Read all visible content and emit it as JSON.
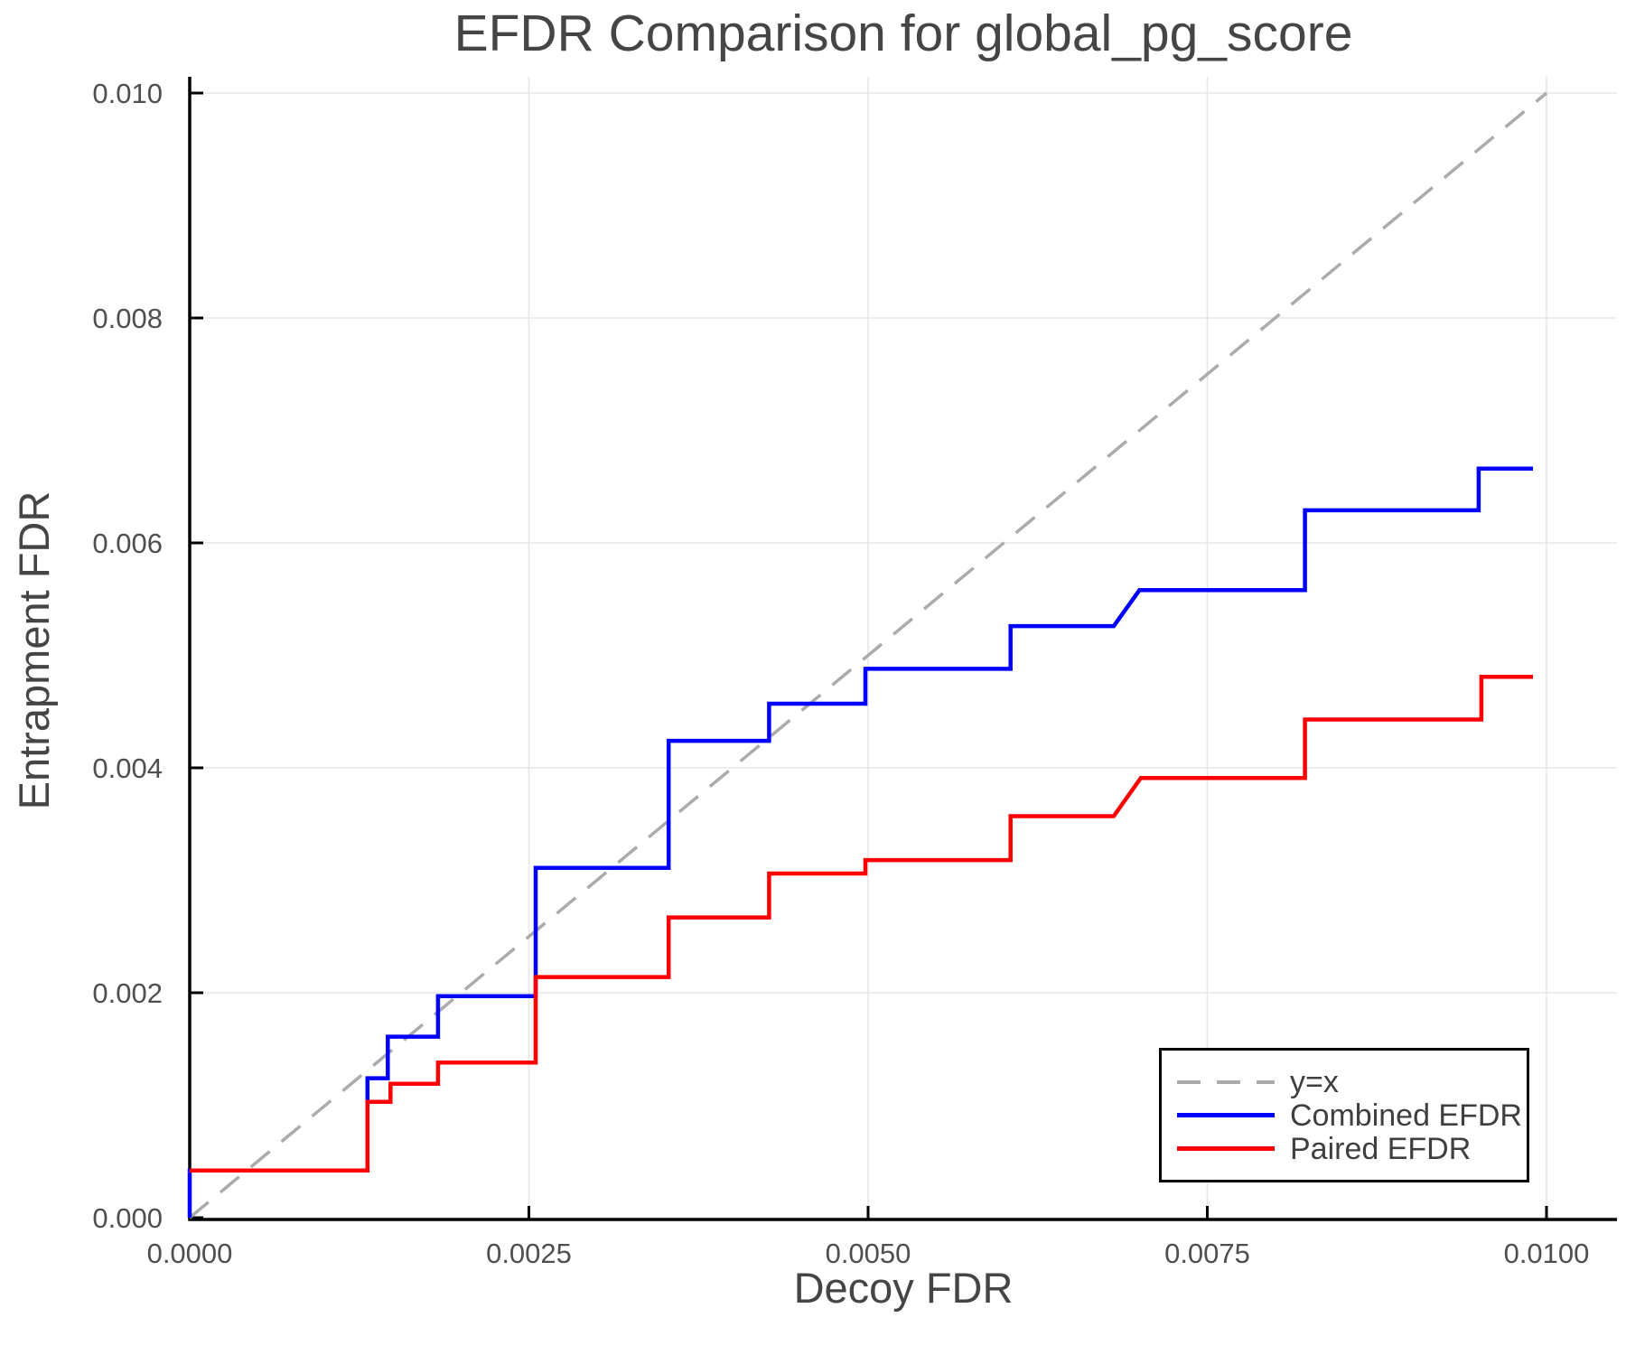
{
  "figure": {
    "title": "EFDR Comparison for global_pg_score",
    "x_axis_label": "Decoy FDR",
    "y_axis_label": "Entrapment FDR",
    "background_color": "#ffffff",
    "grid_color": "#e7e7e7",
    "spine_color": "#000000",
    "text_color": "#454545",
    "tick_label_color": "#4f4f4f"
  },
  "legend": {
    "position": "lower right",
    "items": [
      {
        "label": "y=x",
        "color": "#ababab",
        "style": "dashed"
      },
      {
        "label": "Combined EFDR",
        "color": "#0000ff",
        "style": "solid"
      },
      {
        "label": "Paired EFDR",
        "color": "#ff0000",
        "style": "solid"
      }
    ]
  },
  "chart_data": {
    "type": "line",
    "title": "EFDR Comparison for global_pg_score",
    "xlabel": "Decoy FDR",
    "ylabel": "Entrapment FDR",
    "xlim": [
      0,
      0.0105
    ],
    "ylim": [
      0,
      0.01015
    ],
    "grid": true,
    "legend_position": "lower right",
    "x_ticks": [
      0,
      0.0025,
      0.005,
      0.0075,
      0.01
    ],
    "x_tick_labels": [
      "0.0000",
      "0.0025",
      "0.0050",
      "0.0075",
      "0.0100"
    ],
    "y_ticks": [
      0,
      0.002,
      0.004,
      0.006,
      0.008,
      0.01
    ],
    "y_tick_labels": [
      "0.000",
      "0.002",
      "0.004",
      "0.006",
      "0.008",
      "0.010"
    ],
    "series": [
      {
        "name": "y=x",
        "color": "#ababab",
        "style": "dashed",
        "width": 3.5,
        "points": [
          [
            0,
            0
          ],
          [
            0.01,
            0.01
          ]
        ]
      },
      {
        "name": "Combined EFDR",
        "color": "#0000ff",
        "style": "solid",
        "width": 4.5,
        "points": [
          [
            0,
            0
          ],
          [
            0,
            0.00042
          ],
          [
            0.00131,
            0.00042
          ],
          [
            0.00131,
            0.00124
          ],
          [
            0.00146,
            0.00124
          ],
          [
            0.00146,
            0.00161
          ],
          [
            0.00183,
            0.00161
          ],
          [
            0.00183,
            0.00197
          ],
          [
            0.00255,
            0.00197
          ],
          [
            0.00255,
            0.00311
          ],
          [
            0.00353,
            0.00311
          ],
          [
            0.00353,
            0.00424
          ],
          [
            0.00427,
            0.00424
          ],
          [
            0.00427,
            0.00457
          ],
          [
            0.00498,
            0.00457
          ],
          [
            0.00498,
            0.00488
          ],
          [
            0.00605,
            0.00488
          ],
          [
            0.00605,
            0.00526
          ],
          [
            0.00681,
            0.00526
          ],
          [
            0.007,
            0.00558
          ],
          [
            0.00822,
            0.00558
          ],
          [
            0.00822,
            0.00629
          ],
          [
            0.0095,
            0.00629
          ],
          [
            0.0095,
            0.00666
          ],
          [
            0.0099,
            0.00666
          ]
        ]
      },
      {
        "name": "Paired EFDR",
        "color": "#ff0000",
        "style": "solid",
        "width": 4.5,
        "points": [
          [
            0,
            0.00042
          ],
          [
            0.00131,
            0.00042
          ],
          [
            0.00131,
            0.00103
          ],
          [
            0.00148,
            0.00103
          ],
          [
            0.00148,
            0.00119
          ],
          [
            0.00183,
            0.00119
          ],
          [
            0.00183,
            0.00138
          ],
          [
            0.00255,
            0.00138
          ],
          [
            0.00255,
            0.00214
          ],
          [
            0.00353,
            0.00214
          ],
          [
            0.00353,
            0.00267
          ],
          [
            0.00427,
            0.00267
          ],
          [
            0.00427,
            0.00306
          ],
          [
            0.00498,
            0.00306
          ],
          [
            0.00498,
            0.00318
          ],
          [
            0.00605,
            0.00318
          ],
          [
            0.00605,
            0.00357
          ],
          [
            0.00681,
            0.00357
          ],
          [
            0.00701,
            0.00391
          ],
          [
            0.00822,
            0.00391
          ],
          [
            0.00822,
            0.00443
          ],
          [
            0.00952,
            0.00443
          ],
          [
            0.00952,
            0.00481
          ],
          [
            0.0099,
            0.00481
          ]
        ]
      }
    ]
  }
}
